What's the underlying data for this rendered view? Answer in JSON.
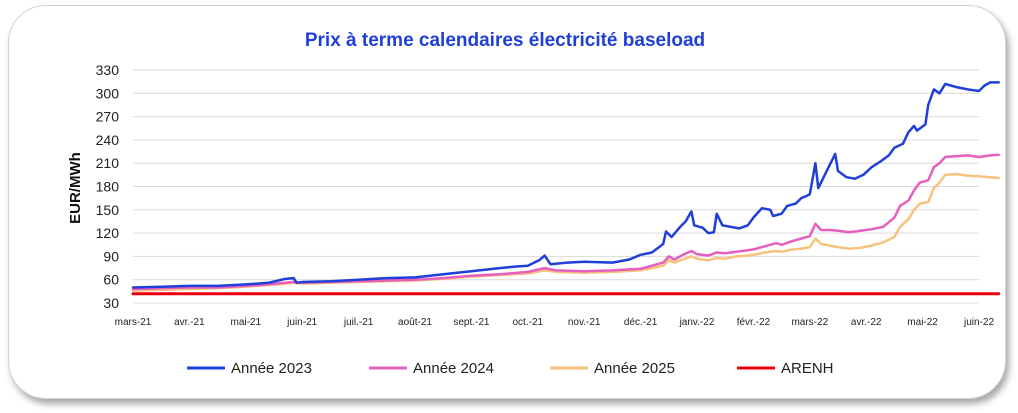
{
  "chart_data": {
    "type": "line",
    "title": "Prix à terme calendaires électricité baseload",
    "ylabel": "EUR/MWh",
    "xlabel": "",
    "ylim": [
      30,
      330
    ],
    "yticks": [
      30,
      60,
      90,
      120,
      150,
      180,
      210,
      240,
      270,
      300,
      330
    ],
    "xticks": [
      "mars-21",
      "avr.-21",
      "mai-21",
      "juin-21",
      "juil.-21",
      "août-21",
      "sept.-21",
      "oct.-21",
      "nov.-21",
      "déc.-21",
      "janv.-22",
      "févr.-22",
      "mars-22",
      "avr.-22",
      "mai-22",
      "juin-22"
    ],
    "x_unit": "months since mars-21",
    "grid": true,
    "legend_position": "bottom",
    "series": [
      {
        "name": "Année 2023",
        "color": "#1f3fd8",
        "points": [
          [
            0,
            50
          ],
          [
            0.5,
            51
          ],
          [
            1,
            52
          ],
          [
            1.5,
            52
          ],
          [
            2,
            54
          ],
          [
            2.4,
            56
          ],
          [
            2.7,
            61
          ],
          [
            2.85,
            62
          ],
          [
            2.9,
            56
          ],
          [
            3,
            57
          ],
          [
            3.5,
            58
          ],
          [
            4,
            60
          ],
          [
            4.5,
            62
          ],
          [
            5,
            63
          ],
          [
            5.5,
            67
          ],
          [
            6,
            71
          ],
          [
            6.5,
            75
          ],
          [
            6.8,
            77
          ],
          [
            7,
            78
          ],
          [
            7.2,
            85
          ],
          [
            7.3,
            91
          ],
          [
            7.4,
            80
          ],
          [
            7.7,
            82
          ],
          [
            8,
            83
          ],
          [
            8.5,
            82
          ],
          [
            8.8,
            86
          ],
          [
            9,
            92
          ],
          [
            9.2,
            95
          ],
          [
            9.4,
            106
          ],
          [
            9.45,
            122
          ],
          [
            9.55,
            115
          ],
          [
            9.7,
            128
          ],
          [
            9.8,
            135
          ],
          [
            9.9,
            148
          ],
          [
            9.95,
            130
          ],
          [
            10.1,
            127
          ],
          [
            10.2,
            120
          ],
          [
            10.3,
            121
          ],
          [
            10.35,
            145
          ],
          [
            10.45,
            130
          ],
          [
            10.6,
            128
          ],
          [
            10.75,
            126
          ],
          [
            10.9,
            130
          ],
          [
            11,
            140
          ],
          [
            11.15,
            152
          ],
          [
            11.3,
            150
          ],
          [
            11.35,
            142
          ],
          [
            11.5,
            145
          ],
          [
            11.6,
            155
          ],
          [
            11.75,
            158
          ],
          [
            11.85,
            165
          ],
          [
            11.95,
            168
          ],
          [
            12,
            170
          ],
          [
            12.1,
            210
          ],
          [
            12.15,
            178
          ],
          [
            12.3,
            200
          ],
          [
            12.45,
            222
          ],
          [
            12.5,
            200
          ],
          [
            12.65,
            192
          ],
          [
            12.8,
            190
          ],
          [
            12.95,
            195
          ],
          [
            13.1,
            205
          ],
          [
            13.25,
            212
          ],
          [
            13.4,
            220
          ],
          [
            13.5,
            230
          ],
          [
            13.65,
            235
          ],
          [
            13.75,
            250
          ],
          [
            13.85,
            258
          ],
          [
            13.9,
            252
          ],
          [
            14.05,
            260
          ],
          [
            14.1,
            285
          ],
          [
            14.2,
            305
          ],
          [
            14.3,
            300
          ],
          [
            14.4,
            312
          ],
          [
            14.6,
            308
          ],
          [
            14.8,
            305
          ],
          [
            15,
            303
          ],
          [
            15.1,
            310
          ],
          [
            15.2,
            314
          ],
          [
            15.35,
            314
          ]
        ]
      },
      {
        "name": "Année 2024",
        "color": "#e55fc0",
        "points": [
          [
            0,
            48
          ],
          [
            0.5,
            49
          ],
          [
            1,
            50
          ],
          [
            1.5,
            50
          ],
          [
            2,
            52
          ],
          [
            2.4,
            54
          ],
          [
            2.7,
            56
          ],
          [
            2.85,
            57
          ],
          [
            3,
            56
          ],
          [
            3.5,
            57
          ],
          [
            4,
            58
          ],
          [
            4.5,
            59
          ],
          [
            5,
            60
          ],
          [
            5.5,
            62
          ],
          [
            6,
            65
          ],
          [
            6.5,
            67
          ],
          [
            7,
            70
          ],
          [
            7.3,
            75
          ],
          [
            7.5,
            72
          ],
          [
            8,
            71
          ],
          [
            8.5,
            72
          ],
          [
            9,
            74
          ],
          [
            9.2,
            78
          ],
          [
            9.4,
            82
          ],
          [
            9.5,
            90
          ],
          [
            9.6,
            86
          ],
          [
            9.75,
            92
          ],
          [
            9.9,
            97
          ],
          [
            10,
            93
          ],
          [
            10.2,
            91
          ],
          [
            10.35,
            95
          ],
          [
            10.5,
            94
          ],
          [
            10.7,
            96
          ],
          [
            10.9,
            98
          ],
          [
            11,
            99
          ],
          [
            11.2,
            103
          ],
          [
            11.4,
            107
          ],
          [
            11.5,
            105
          ],
          [
            11.7,
            110
          ],
          [
            11.85,
            113
          ],
          [
            12,
            116
          ],
          [
            12.1,
            132
          ],
          [
            12.2,
            124
          ],
          [
            12.35,
            124
          ],
          [
            12.5,
            123
          ],
          [
            12.7,
            121
          ],
          [
            12.9,
            123
          ],
          [
            13.1,
            125
          ],
          [
            13.3,
            128
          ],
          [
            13.5,
            140
          ],
          [
            13.6,
            155
          ],
          [
            13.75,
            162
          ],
          [
            13.85,
            175
          ],
          [
            13.95,
            185
          ],
          [
            14.1,
            188
          ],
          [
            14.2,
            205
          ],
          [
            14.3,
            210
          ],
          [
            14.4,
            218
          ],
          [
            14.6,
            219
          ],
          [
            14.8,
            220
          ],
          [
            15,
            218
          ],
          [
            15.2,
            220
          ],
          [
            15.35,
            221
          ]
        ]
      },
      {
        "name": "Année 2025",
        "color": "#f7c27e",
        "points": [
          [
            0,
            46
          ],
          [
            0.5,
            47
          ],
          [
            1,
            48
          ],
          [
            1.5,
            49
          ],
          [
            2,
            51
          ],
          [
            2.4,
            53
          ],
          [
            2.7,
            55
          ],
          [
            2.85,
            56
          ],
          [
            3,
            55
          ],
          [
            3.5,
            56
          ],
          [
            4,
            57
          ],
          [
            4.5,
            58
          ],
          [
            5,
            59
          ],
          [
            5.5,
            61
          ],
          [
            6,
            64
          ],
          [
            6.5,
            66
          ],
          [
            7,
            68
          ],
          [
            7.3,
            72
          ],
          [
            7.5,
            70
          ],
          [
            8,
            69
          ],
          [
            8.5,
            70
          ],
          [
            9,
            72
          ],
          [
            9.2,
            75
          ],
          [
            9.4,
            78
          ],
          [
            9.5,
            85
          ],
          [
            9.6,
            82
          ],
          [
            9.75,
            86
          ],
          [
            9.9,
            90
          ],
          [
            10,
            87
          ],
          [
            10.2,
            85
          ],
          [
            10.35,
            88
          ],
          [
            10.5,
            87
          ],
          [
            10.7,
            90
          ],
          [
            10.9,
            91
          ],
          [
            11,
            92
          ],
          [
            11.2,
            95
          ],
          [
            11.4,
            97
          ],
          [
            11.5,
            96
          ],
          [
            11.7,
            99
          ],
          [
            11.85,
            100
          ],
          [
            12,
            102
          ],
          [
            12.1,
            113
          ],
          [
            12.2,
            106
          ],
          [
            12.35,
            104
          ],
          [
            12.5,
            102
          ],
          [
            12.7,
            100
          ],
          [
            12.9,
            101
          ],
          [
            13.1,
            104
          ],
          [
            13.3,
            108
          ],
          [
            13.5,
            115
          ],
          [
            13.6,
            128
          ],
          [
            13.75,
            138
          ],
          [
            13.85,
            150
          ],
          [
            13.95,
            158
          ],
          [
            14.1,
            160
          ],
          [
            14.2,
            178
          ],
          [
            14.3,
            185
          ],
          [
            14.4,
            195
          ],
          [
            14.6,
            196
          ],
          [
            14.8,
            194
          ],
          [
            15,
            193
          ],
          [
            15.2,
            192
          ],
          [
            15.35,
            191
          ]
        ]
      },
      {
        "name": "ARENH",
        "color": "#e8000b",
        "points": [
          [
            0,
            42
          ],
          [
            15.35,
            42
          ]
        ]
      }
    ]
  }
}
